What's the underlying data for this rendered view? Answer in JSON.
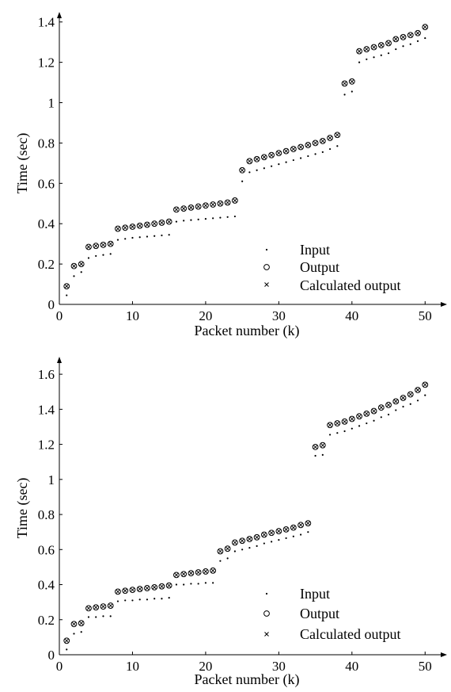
{
  "chart_data": [
    {
      "type": "scatter",
      "xlabel": "Packet number (k)",
      "ylabel": "Time (sec)",
      "xlim": [
        0,
        53
      ],
      "ylim": [
        0,
        1.45
      ],
      "xticks": [
        0,
        10,
        20,
        30,
        40,
        50
      ],
      "yticks": [
        0,
        0.2,
        0.4,
        0.6,
        0.8,
        1,
        1.2,
        1.4
      ],
      "xtick_labels": [
        "0",
        "10",
        "20",
        "30",
        "40",
        "50"
      ],
      "ytick_labels": [
        "0",
        "0.2",
        "0.4",
        "0.6",
        "0.8",
        "1",
        "1.2",
        "1.4"
      ],
      "legend_placement": "bottom-right",
      "x": [
        1,
        2,
        3,
        4,
        5,
        6,
        7,
        8,
        9,
        10,
        11,
        12,
        13,
        14,
        15,
        16,
        17,
        18,
        19,
        20,
        21,
        22,
        23,
        24,
        25,
        26,
        27,
        28,
        29,
        30,
        31,
        32,
        33,
        34,
        35,
        36,
        37,
        38,
        39,
        40,
        41,
        42,
        43,
        44,
        45,
        46,
        47,
        48,
        49,
        50
      ],
      "series": [
        {
          "name": "Input",
          "marker": "dot",
          "values": [
            0.045,
            0.14,
            0.16,
            0.23,
            0.24,
            0.245,
            0.25,
            0.32,
            0.325,
            0.33,
            0.333,
            0.336,
            0.339,
            0.342,
            0.345,
            0.41,
            0.415,
            0.418,
            0.421,
            0.424,
            0.427,
            0.43,
            0.433,
            0.436,
            0.61,
            0.655,
            0.665,
            0.675,
            0.685,
            0.695,
            0.705,
            0.715,
            0.725,
            0.735,
            0.745,
            0.755,
            0.77,
            0.785,
            1.04,
            1.055,
            1.2,
            1.215,
            1.225,
            1.235,
            1.245,
            1.265,
            1.28,
            1.29,
            1.305,
            1.32
          ]
        },
        {
          "name": "Output",
          "marker": "circle",
          "values": [
            0.09,
            0.19,
            0.2,
            0.285,
            0.29,
            0.295,
            0.3,
            0.375,
            0.38,
            0.385,
            0.39,
            0.395,
            0.4,
            0.405,
            0.41,
            0.47,
            0.475,
            0.48,
            0.485,
            0.49,
            0.495,
            0.5,
            0.505,
            0.515,
            0.665,
            0.71,
            0.72,
            0.73,
            0.74,
            0.75,
            0.76,
            0.77,
            0.78,
            0.79,
            0.8,
            0.81,
            0.825,
            0.84,
            1.095,
            1.105,
            1.255,
            1.265,
            1.275,
            1.285,
            1.295,
            1.315,
            1.325,
            1.335,
            1.345,
            1.375
          ]
        },
        {
          "name": "Calculated output",
          "marker": "x",
          "values": [
            0.09,
            0.19,
            0.2,
            0.285,
            0.29,
            0.295,
            0.3,
            0.375,
            0.38,
            0.385,
            0.39,
            0.395,
            0.4,
            0.405,
            0.41,
            0.47,
            0.475,
            0.48,
            0.485,
            0.49,
            0.495,
            0.5,
            0.505,
            0.515,
            0.665,
            0.71,
            0.72,
            0.73,
            0.74,
            0.75,
            0.76,
            0.77,
            0.78,
            0.79,
            0.8,
            0.81,
            0.825,
            0.84,
            1.095,
            1.105,
            1.255,
            1.265,
            1.275,
            1.285,
            1.295,
            1.315,
            1.325,
            1.335,
            1.345,
            1.375
          ]
        }
      ]
    },
    {
      "type": "scatter",
      "xlabel": "Packet number (k)",
      "ylabel": "Time (sec)",
      "xlim": [
        0,
        53
      ],
      "ylim": [
        0,
        1.7
      ],
      "xticks": [
        0,
        10,
        20,
        30,
        40,
        50
      ],
      "yticks": [
        0,
        0.2,
        0.4,
        0.6,
        0.8,
        1,
        1.2,
        1.4,
        1.6
      ],
      "xtick_labels": [
        "0",
        "10",
        "20",
        "30",
        "40",
        "50"
      ],
      "ytick_labels": [
        "0",
        "0.2",
        "0.4",
        "0.6",
        "0.8",
        "1",
        "1.2",
        "1.4",
        "1.6"
      ],
      "legend_placement": "bottom-right",
      "x": [
        1,
        2,
        3,
        4,
        5,
        6,
        7,
        8,
        9,
        10,
        11,
        12,
        13,
        14,
        15,
        16,
        17,
        18,
        19,
        20,
        21,
        22,
        23,
        24,
        25,
        26,
        27,
        28,
        29,
        30,
        31,
        32,
        33,
        34,
        35,
        36,
        37,
        38,
        39,
        40,
        41,
        42,
        43,
        44,
        45,
        46,
        47,
        48,
        49,
        50
      ],
      "series": [
        {
          "name": "Input",
          "marker": "dot",
          "values": [
            0.03,
            0.12,
            0.13,
            0.215,
            0.215,
            0.22,
            0.22,
            0.305,
            0.31,
            0.31,
            0.315,
            0.315,
            0.32,
            0.32,
            0.325,
            0.4,
            0.4,
            0.405,
            0.405,
            0.41,
            0.41,
            0.535,
            0.55,
            0.59,
            0.6,
            0.61,
            0.62,
            0.635,
            0.645,
            0.655,
            0.665,
            0.675,
            0.685,
            0.7,
            1.135,
            1.14,
            1.255,
            1.265,
            1.275,
            1.29,
            1.305,
            1.32,
            1.335,
            1.355,
            1.37,
            1.395,
            1.415,
            1.43,
            1.45,
            1.48
          ]
        },
        {
          "name": "Output",
          "marker": "circle",
          "values": [
            0.08,
            0.175,
            0.18,
            0.265,
            0.27,
            0.275,
            0.28,
            0.36,
            0.365,
            0.37,
            0.375,
            0.38,
            0.385,
            0.39,
            0.395,
            0.455,
            0.46,
            0.465,
            0.47,
            0.475,
            0.48,
            0.59,
            0.605,
            0.64,
            0.65,
            0.66,
            0.67,
            0.685,
            0.695,
            0.705,
            0.715,
            0.725,
            0.74,
            0.75,
            1.185,
            1.195,
            1.31,
            1.32,
            1.33,
            1.345,
            1.36,
            1.375,
            1.39,
            1.41,
            1.425,
            1.445,
            1.465,
            1.485,
            1.51,
            1.54
          ]
        },
        {
          "name": "Calculated output",
          "marker": "x",
          "values": [
            0.08,
            0.175,
            0.18,
            0.265,
            0.27,
            0.275,
            0.28,
            0.36,
            0.365,
            0.37,
            0.375,
            0.38,
            0.385,
            0.39,
            0.395,
            0.455,
            0.46,
            0.465,
            0.47,
            0.475,
            0.48,
            0.59,
            0.605,
            0.64,
            0.65,
            0.66,
            0.67,
            0.685,
            0.695,
            0.705,
            0.715,
            0.725,
            0.74,
            0.75,
            1.185,
            1.195,
            1.31,
            1.32,
            1.33,
            1.345,
            1.36,
            1.375,
            1.39,
            1.41,
            1.425,
            1.445,
            1.465,
            1.485,
            1.51,
            1.54
          ]
        }
      ]
    }
  ]
}
